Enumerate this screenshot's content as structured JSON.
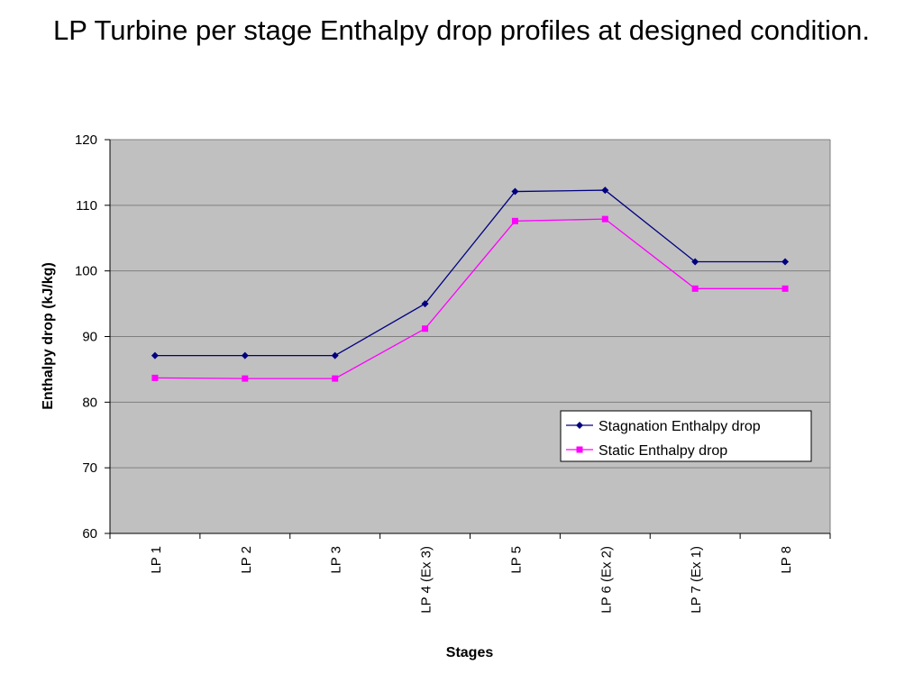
{
  "title": "LP Turbine per stage Enthalpy drop profiles at designed condition.",
  "chart_data": {
    "type": "line",
    "title": "LP Turbine per stage Enthalpy drop profiles at designed condition.",
    "xlabel": "Stages",
    "ylabel": "Enthalpy drop (kJ/kg)",
    "categories": [
      "LP 1",
      "LP 2",
      "LP 3",
      "LP 4 (Ex 3)",
      "LP 5",
      "LP 6 (Ex 2)",
      "LP 7 (Ex 1)",
      "LP 8"
    ],
    "ylim": [
      60,
      120
    ],
    "yticks": [
      60,
      70,
      80,
      90,
      100,
      110,
      120
    ],
    "grid": true,
    "legend_position": "right, lower-middle",
    "plot_background": "#c0c0c0",
    "series": [
      {
        "name": "Stagnation Enthalpy drop",
        "color": "#000080",
        "marker": "diamond",
        "values": [
          87.1,
          87.1,
          87.1,
          95.0,
          112.1,
          112.3,
          101.4,
          101.4
        ]
      },
      {
        "name": "Static Enthalpy drop",
        "color": "#ff00ff",
        "marker": "square",
        "values": [
          83.7,
          83.6,
          83.6,
          91.2,
          107.6,
          107.9,
          97.3,
          97.3
        ]
      }
    ]
  }
}
